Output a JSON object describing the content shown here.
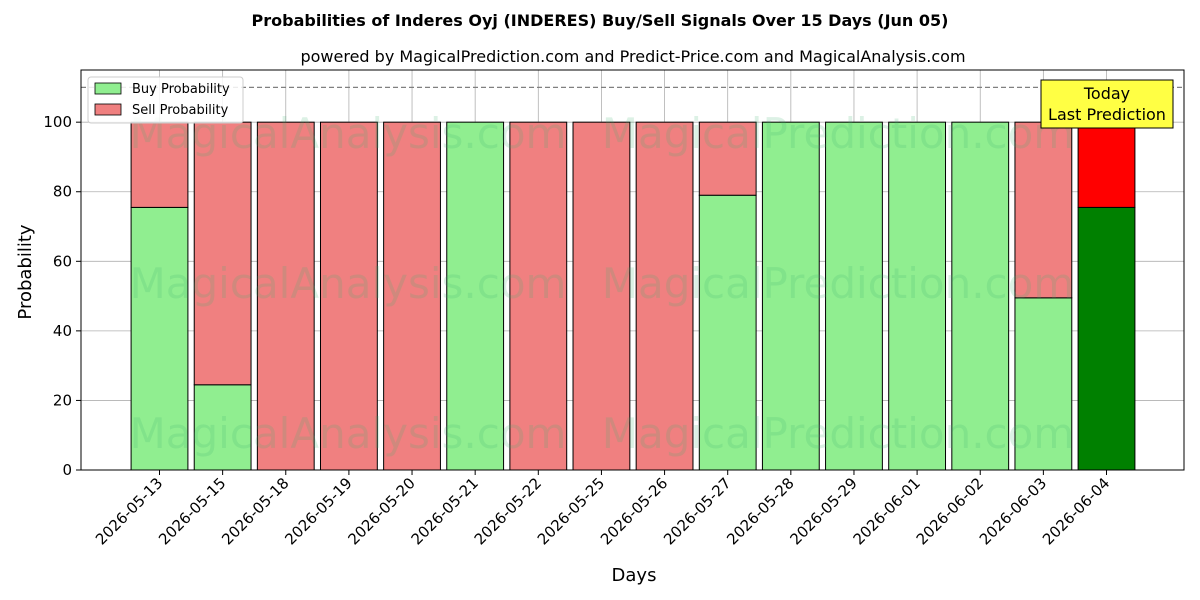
{
  "chart_data": {
    "type": "bar",
    "stacked": true,
    "title": "Probabilities of Inderes Oyj (INDERES) Buy/Sell Signals Over 15 Days (Jun 05)",
    "subtitle": "powered by MagicalPrediction.com and Predict-Price.com and MagicalAnalysis.com",
    "xlabel": "Days",
    "ylabel": "Probability",
    "ylim": [
      0,
      115
    ],
    "yticks": [
      0,
      20,
      40,
      60,
      80,
      100
    ],
    "threshold_line": 110,
    "grid": true,
    "legend_position": "top-left",
    "categories": [
      "2026-05-13",
      "2026-05-15",
      "2026-05-18",
      "2026-05-19",
      "2026-05-20",
      "2026-05-21",
      "2026-05-22",
      "2026-05-25",
      "2026-05-26",
      "2026-05-27",
      "2026-05-28",
      "2026-05-29",
      "2026-06-01",
      "2026-06-02",
      "2026-06-03",
      "2026-06-04"
    ],
    "series": [
      {
        "name": "Buy Probability",
        "color": "#90ee90",
        "values": [
          75.5,
          24.5,
          0,
          0,
          0,
          100,
          0,
          0,
          0,
          79,
          100,
          100,
          100,
          100,
          49.5,
          75.5
        ]
      },
      {
        "name": "Sell Probability",
        "color": "#f08080",
        "values": [
          24.5,
          75.5,
          100,
          100,
          100,
          0,
          100,
          100,
          100,
          21,
          0,
          0,
          0,
          0,
          50.5,
          24.5
        ]
      }
    ],
    "highlight": {
      "index": 15,
      "buy_color": "#008000",
      "sell_color": "#ff0000"
    },
    "annotation": {
      "lines": [
        "Today",
        "Last Prediction"
      ],
      "background": "#ffff44"
    },
    "watermarks": [
      "MagicalAnalysis.com",
      "MagicalPrediction.com"
    ]
  }
}
